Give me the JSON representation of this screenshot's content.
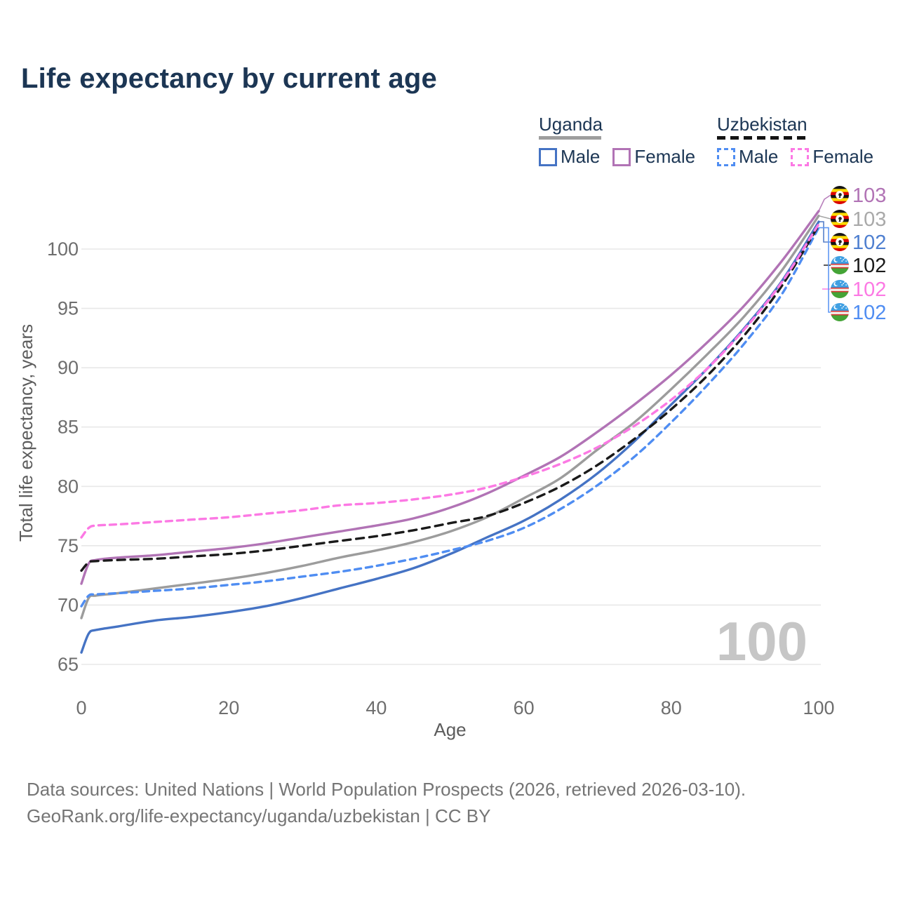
{
  "title": "Life expectancy by current age",
  "legend": {
    "groups": [
      {
        "label": "Uganda",
        "line_style": "solid",
        "underline_color": "#9e9e9e",
        "items": [
          {
            "label": "Male",
            "color": "#4573c4",
            "dash": "solid"
          },
          {
            "label": "Female",
            "color": "#b173b5",
            "dash": "solid"
          }
        ]
      },
      {
        "label": "Uzbekistan",
        "line_style": "dashed",
        "underline_color": "#141414",
        "items": [
          {
            "label": "Male",
            "color": "#4f8df2",
            "dash": "dashed"
          },
          {
            "label": "Female",
            "color": "#fc79e4",
            "dash": "dashed"
          }
        ]
      }
    ]
  },
  "chart_data": {
    "type": "line",
    "title": "Life expectancy by current age",
    "xlabel": "Age",
    "ylabel": "Total life expectancy, years",
    "x_ticks": [
      0,
      20,
      40,
      60,
      80,
      100
    ],
    "y_ticks": [
      65,
      70,
      75,
      80,
      85,
      90,
      95,
      100
    ],
    "xlim": [
      0,
      100
    ],
    "ylim": [
      63.5,
      103.5
    ],
    "grid": true,
    "legend_position": "top-right",
    "age_indicator_watermark": "100",
    "ages": [
      0,
      1,
      2,
      5,
      10,
      15,
      20,
      25,
      30,
      35,
      40,
      45,
      50,
      55,
      60,
      65,
      70,
      75,
      80,
      85,
      90,
      95,
      100
    ],
    "series": [
      {
        "name": "Uganda Male",
        "country": "Uganda",
        "sex": "Male",
        "color": "#4573c4",
        "dash": "solid",
        "values": [
          66.0,
          67.6,
          67.9,
          68.2,
          68.7,
          69.0,
          69.4,
          69.9,
          70.6,
          71.4,
          72.2,
          73.1,
          74.3,
          75.7,
          77.1,
          78.9,
          81.1,
          83.8,
          86.9,
          90.0,
          93.4,
          97.3,
          102.3
        ]
      },
      {
        "name": "Uganda Both sexes",
        "country": "Uganda",
        "sex": "Both",
        "color": "#9c9c9c",
        "dash": "solid",
        "values": [
          68.9,
          70.6,
          70.8,
          71.0,
          71.4,
          71.8,
          72.2,
          72.7,
          73.3,
          74.0,
          74.6,
          75.3,
          76.2,
          77.4,
          79.0,
          80.7,
          83.1,
          85.4,
          88.2,
          91.2,
          94.4,
          98.2,
          102.8
        ]
      },
      {
        "name": "Uganda Female",
        "country": "Uganda",
        "sex": "Female",
        "color": "#b173b5",
        "dash": "solid",
        "values": [
          71.8,
          73.5,
          73.8,
          74.0,
          74.2,
          74.5,
          74.8,
          75.2,
          75.7,
          76.2,
          76.7,
          77.3,
          78.2,
          79.4,
          80.9,
          82.5,
          84.6,
          86.9,
          89.4,
          92.2,
          95.3,
          99.0,
          103.2
        ]
      },
      {
        "name": "Uzbekistan Male",
        "country": "Uzbekistan",
        "sex": "Male",
        "color": "#4f8df2",
        "dash": "dashed",
        "values": [
          69.9,
          70.8,
          70.9,
          71.0,
          71.2,
          71.4,
          71.7,
          72.0,
          72.4,
          72.8,
          73.3,
          73.9,
          74.6,
          75.4,
          76.5,
          78.1,
          80.1,
          82.5,
          85.4,
          88.6,
          92.1,
          96.2,
          101.8
        ]
      },
      {
        "name": "Uzbekistan Both sexes",
        "country": "Uzbekistan",
        "sex": "Both",
        "color": "#1a1a1a",
        "dash": "dashed",
        "values": [
          72.9,
          73.6,
          73.7,
          73.8,
          73.9,
          74.1,
          74.3,
          74.6,
          75.0,
          75.4,
          75.8,
          76.3,
          76.9,
          77.5,
          78.6,
          80.0,
          81.8,
          84.0,
          86.5,
          89.4,
          92.8,
          96.9,
          102.0
        ]
      },
      {
        "name": "Uzbekistan Female",
        "country": "Uzbekistan",
        "sex": "Female",
        "color": "#fc79e4",
        "dash": "dashed",
        "values": [
          75.7,
          76.5,
          76.7,
          76.8,
          77.0,
          77.2,
          77.4,
          77.7,
          78.0,
          78.4,
          78.6,
          78.9,
          79.3,
          79.9,
          80.8,
          81.9,
          83.3,
          85.1,
          87.3,
          90.0,
          93.3,
          97.2,
          102.1
        ]
      }
    ],
    "end_labels": [
      {
        "value": "103",
        "color": "#b173b5",
        "flag": "uganda",
        "series": "Uganda Female"
      },
      {
        "value": "103",
        "color": "#a9a9a9",
        "flag": "uganda",
        "series": "Uganda Both sexes"
      },
      {
        "value": "102",
        "color": "#4e7fd0",
        "flag": "uganda",
        "series": "Uganda Male"
      },
      {
        "value": "102",
        "color": "#1a1a1a",
        "flag": "uzbekistan",
        "series": "Uzbekistan Both sexes"
      },
      {
        "value": "102",
        "color": "#fc79e4",
        "flag": "uzbekistan",
        "series": "Uzbekistan Female"
      },
      {
        "value": "102",
        "color": "#4f8df2",
        "flag": "uzbekistan",
        "series": "Uzbekistan Male"
      }
    ]
  },
  "footer": {
    "line1": "Data sources: United Nations | World Population Prospects (2026, retrieved 2026-03-10).",
    "line2": "GeoRank.org/life-expectancy/uganda/uzbekistan | CC BY"
  }
}
